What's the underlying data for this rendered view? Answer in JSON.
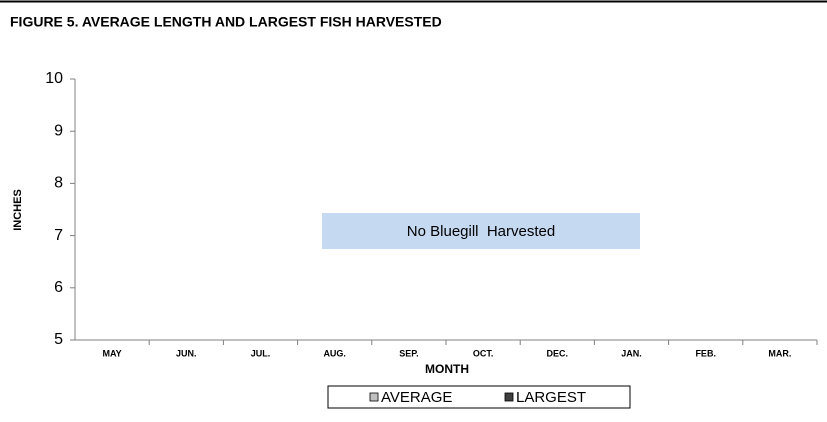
{
  "chart_data": {
    "type": "bar",
    "title": "FIGURE 5.  AVERAGE LENGTH AND LARGEST FISH HARVESTED",
    "xlabel": "MONTH",
    "ylabel": "INCHES",
    "annotation": "No Bluegill  Harvested",
    "categories": [
      "MAY",
      "JUN.",
      "JUL.",
      "AUG.",
      "SEP.",
      "OCT.",
      "DEC.",
      "JAN.",
      "FEB.",
      "MAR."
    ],
    "series": [
      {
        "name": "AVERAGE",
        "color": "#c0c0c0",
        "values": [
          null,
          null,
          null,
          null,
          null,
          null,
          null,
          null,
          null,
          null
        ]
      },
      {
        "name": "LARGEST",
        "color": "#404040",
        "values": [
          null,
          null,
          null,
          null,
          null,
          null,
          null,
          null,
          null,
          null
        ]
      }
    ],
    "ylim": [
      5,
      10
    ],
    "yticks": [
      5,
      6,
      7,
      8,
      9,
      10
    ],
    "grid": false,
    "legend": "bottom"
  }
}
